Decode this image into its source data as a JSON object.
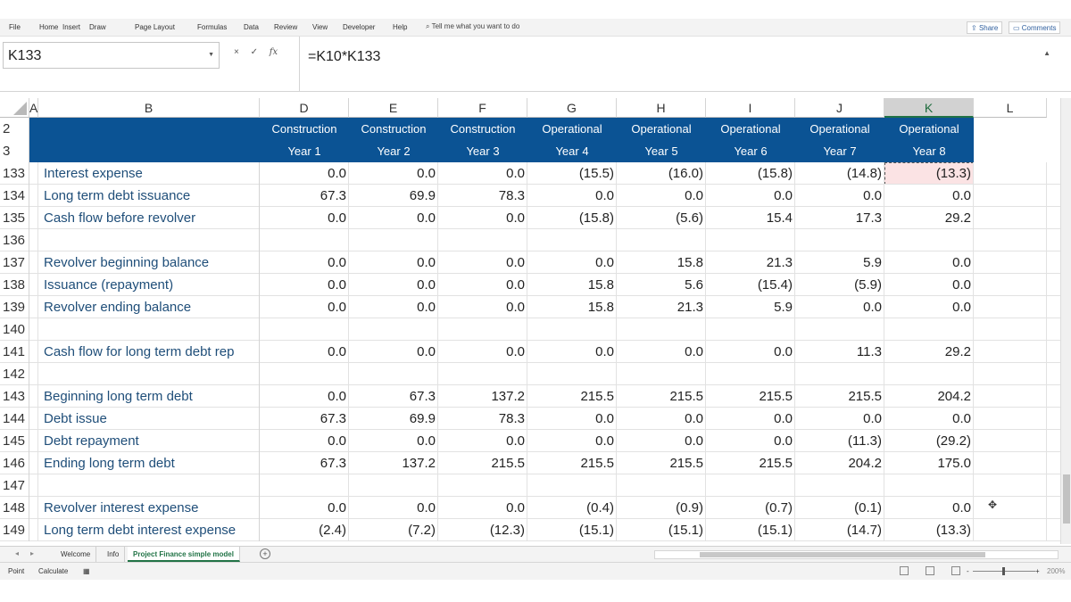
{
  "ribbon": {
    "tabs": [
      "File",
      "Home",
      "Insert",
      "Draw",
      "Page Layout",
      "Formulas",
      "Data",
      "Review",
      "View",
      "Developer",
      "Help"
    ],
    "tell_me": "Tell me what you want to do",
    "share": "Share",
    "comments": "Comments"
  },
  "formula_bar": {
    "name_box": "K133",
    "cancel": "×",
    "enter": "✓",
    "fx": "fx",
    "formula": "=K10*K133"
  },
  "columns": [
    "A",
    "B",
    "D",
    "E",
    "F",
    "G",
    "H",
    "I",
    "J",
    "K",
    "L"
  ],
  "selected_column": "K",
  "header_rows": [
    {
      "row": "2",
      "cells": [
        "Construction",
        "Construction",
        "Construction",
        "Operational",
        "Operational",
        "Operational",
        "Operational",
        "Operational"
      ]
    },
    {
      "row": "3",
      "cells": [
        "Year 1",
        "Year 2",
        "Year 3",
        "Year 4",
        "Year 5",
        "Year 6",
        "Year 7",
        "Year 8"
      ]
    }
  ],
  "rows": [
    {
      "row": "133",
      "label": "Interest expense",
      "values": [
        "0.0",
        "0.0",
        "0.0",
        "(15.5)",
        "(16.0)",
        "(15.8)",
        "(14.8)",
        "(13.3)"
      ]
    },
    {
      "row": "134",
      "label": "Long term debt issuance",
      "values": [
        "67.3",
        "69.9",
        "78.3",
        "0.0",
        "0.0",
        "0.0",
        "0.0",
        "0.0"
      ]
    },
    {
      "row": "135",
      "label": "Cash flow before revolver",
      "values": [
        "0.0",
        "0.0",
        "0.0",
        "(15.8)",
        "(5.6)",
        "15.4",
        "17.3",
        "29.2"
      ]
    },
    {
      "row": "136",
      "label": "",
      "values": [
        "",
        "",
        "",
        "",
        "",
        "",
        "",
        ""
      ]
    },
    {
      "row": "137",
      "label": "Revolver beginning balance",
      "values": [
        "0.0",
        "0.0",
        "0.0",
        "0.0",
        "15.8",
        "21.3",
        "5.9",
        "0.0"
      ]
    },
    {
      "row": "138",
      "label": "Issuance (repayment)",
      "values": [
        "0.0",
        "0.0",
        "0.0",
        "15.8",
        "5.6",
        "(15.4)",
        "(5.9)",
        "0.0"
      ]
    },
    {
      "row": "139",
      "label": "Revolver ending balance",
      "values": [
        "0.0",
        "0.0",
        "0.0",
        "15.8",
        "21.3",
        "5.9",
        "0.0",
        "0.0"
      ]
    },
    {
      "row": "140",
      "label": "",
      "values": [
        "",
        "",
        "",
        "",
        "",
        "",
        "",
        ""
      ]
    },
    {
      "row": "141",
      "label": "Cash flow for long term debt rep",
      "values": [
        "0.0",
        "0.0",
        "0.0",
        "0.0",
        "0.0",
        "0.0",
        "11.3",
        "29.2"
      ]
    },
    {
      "row": "142",
      "label": "",
      "values": [
        "",
        "",
        "",
        "",
        "",
        "",
        "",
        ""
      ]
    },
    {
      "row": "143",
      "label": "Beginning long term debt",
      "values": [
        "0.0",
        "67.3",
        "137.2",
        "215.5",
        "215.5",
        "215.5",
        "215.5",
        "204.2"
      ]
    },
    {
      "row": "144",
      "label": "Debt issue",
      "values": [
        "67.3",
        "69.9",
        "78.3",
        "0.0",
        "0.0",
        "0.0",
        "0.0",
        "0.0"
      ]
    },
    {
      "row": "145",
      "label": "Debt repayment",
      "values": [
        "0.0",
        "0.0",
        "0.0",
        "0.0",
        "0.0",
        "0.0",
        "(11.3)",
        "(29.2)"
      ]
    },
    {
      "row": "146",
      "label": "Ending long term debt",
      "values": [
        "67.3",
        "137.2",
        "215.5",
        "215.5",
        "215.5",
        "215.5",
        "204.2",
        "175.0"
      ]
    },
    {
      "row": "147",
      "label": "",
      "values": [
        "",
        "",
        "",
        "",
        "",
        "",
        "",
        ""
      ]
    },
    {
      "row": "148",
      "label": "Revolver interest expense",
      "values": [
        "0.0",
        "0.0",
        "0.0",
        "(0.4)",
        "(0.9)",
        "(0.7)",
        "(0.1)",
        "0.0"
      ]
    },
    {
      "row": "149",
      "label": "Long term debt interest expense",
      "values": [
        "(2.4)",
        "(7.2)",
        "(12.3)",
        "(15.1)",
        "(15.1)",
        "(15.1)",
        "(14.7)",
        "(13.3)"
      ]
    }
  ],
  "sheet_tabs": [
    "Welcome",
    "Info",
    "Project Finance simple model"
  ],
  "active_sheet": "Project Finance simple model",
  "status": {
    "mode": "Point",
    "calc": "Calculate",
    "zoom": "200%"
  },
  "colors": {
    "header_fill": "#0b5394",
    "label_text": "#1f4e79",
    "selected_cell": "#fbe3e4",
    "accent": "#217346"
  }
}
